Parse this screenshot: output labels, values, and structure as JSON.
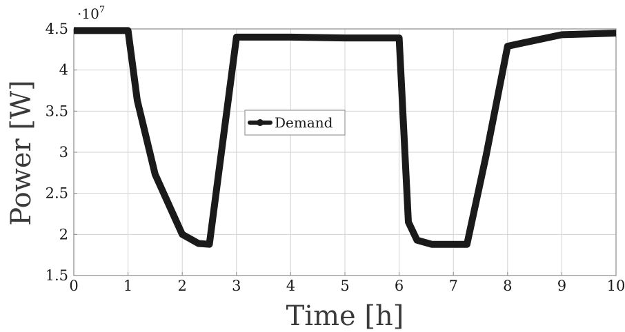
{
  "chart_data": {
    "type": "line",
    "xlabel": "Time [h]",
    "ylabel": "Power [W]",
    "xlim": [
      0,
      10
    ],
    "ylim": [
      1.5,
      4.5
    ],
    "x_ticks": [
      "0",
      "1",
      "2",
      "3",
      "4",
      "5",
      "6",
      "7",
      "8",
      "9",
      "10"
    ],
    "y_ticks": [
      "1.5",
      "2",
      "2.5",
      "3",
      "3.5",
      "4",
      "4.5"
    ],
    "y_multiplier": {
      "base": "·10",
      "exponent": "7"
    },
    "grid": true,
    "legend": {
      "position": "center-left"
    },
    "series": [
      {
        "name": "Demand",
        "color": "#1a1a1a",
        "marker": "circle",
        "x": [
          0,
          1.0,
          1.17,
          1.5,
          2.0,
          2.3,
          2.5,
          3.0,
          3.5,
          4.0,
          5.0,
          6.0,
          6.17,
          6.33,
          6.6,
          7.0,
          7.25,
          7.6,
          8.0,
          8.5,
          9.0,
          9.5,
          10.0
        ],
        "values": [
          4.48,
          4.48,
          3.63,
          2.73,
          2.0,
          1.89,
          1.88,
          4.4,
          4.4,
          4.4,
          4.39,
          4.39,
          2.15,
          1.93,
          1.88,
          1.88,
          1.88,
          2.95,
          4.29,
          4.36,
          4.43,
          4.44,
          4.45
        ]
      }
    ]
  }
}
